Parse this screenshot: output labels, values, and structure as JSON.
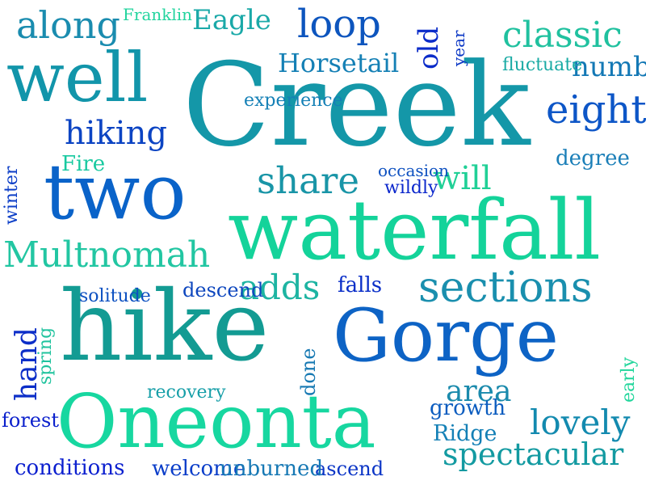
{
  "words": [
    {
      "text": "Creek",
      "color": "#1497a8"
    },
    {
      "text": "waterfall",
      "color": "#14d39a"
    },
    {
      "text": "Gorge",
      "color": "#0d63c5"
    },
    {
      "text": "hike",
      "color": "#139b93"
    },
    {
      "text": "Oneonta",
      "color": "#17d7a0"
    },
    {
      "text": "two",
      "color": "#0a63c9"
    },
    {
      "text": "well",
      "color": "#1295aa"
    },
    {
      "text": "sections",
      "color": "#1a8fae"
    },
    {
      "text": "Multnomah",
      "color": "#22c6a2"
    },
    {
      "text": "loop",
      "color": "#0d55be"
    },
    {
      "text": "along",
      "color": "#1a8caf"
    },
    {
      "text": "classic",
      "color": "#20c19f"
    },
    {
      "text": "eight",
      "color": "#0d56c7"
    },
    {
      "text": "hiking",
      "color": "#0c44c3"
    },
    {
      "text": "share",
      "color": "#1995a7"
    },
    {
      "text": "adds",
      "color": "#1db4a2"
    },
    {
      "text": "lovely",
      "color": "#138aaf"
    },
    {
      "text": "spectacular",
      "color": "#139aa1"
    },
    {
      "text": "Horsetail",
      "color": "#1580b5"
    },
    {
      "text": "Eagle",
      "color": "#1aa9a8"
    },
    {
      "text": "area",
      "color": "#1a8aac"
    },
    {
      "text": "will",
      "color": "#20d096"
    },
    {
      "text": "number",
      "color": "#1378b5"
    },
    {
      "text": "falls",
      "color": "#0a2fc8"
    },
    {
      "text": "Fire",
      "color": "#18c9a0"
    },
    {
      "text": "degree",
      "color": "#1b7fb8"
    },
    {
      "text": "descend",
      "color": "#0d46be"
    },
    {
      "text": "growth",
      "color": "#0b5cbf"
    },
    {
      "text": "Ridge",
      "color": "#1480b6"
    },
    {
      "text": "recovery",
      "color": "#179fa8"
    },
    {
      "text": "ascend",
      "color": "#0b35c6"
    },
    {
      "text": "conditions",
      "color": "#0b1fcf"
    },
    {
      "text": "welcome",
      "color": "#0a3dc9"
    },
    {
      "text": "unburned",
      "color": "#1678b4"
    },
    {
      "text": "forest",
      "color": "#0a1fcc"
    },
    {
      "text": "solitude",
      "color": "#0c50c1"
    },
    {
      "text": "experience",
      "color": "#1580b6"
    },
    {
      "text": "fluctuate",
      "color": "#19aaa4"
    },
    {
      "text": "Franklin",
      "color": "#22d49e"
    },
    {
      "text": "occasion",
      "color": "#0d50c0"
    },
    {
      "text": "wildly",
      "color": "#0b27cc"
    },
    {
      "text": "hand",
      "color": "#0c2ec8"
    },
    {
      "text": "old",
      "color": "#0b2cc9"
    },
    {
      "text": "winter",
      "color": "#0c3ec7"
    },
    {
      "text": "spring",
      "color": "#20c39e"
    },
    {
      "text": "done",
      "color": "#1779b3"
    },
    {
      "text": "early",
      "color": "#23d69c"
    },
    {
      "text": "year",
      "color": "#0c38c5"
    }
  ]
}
